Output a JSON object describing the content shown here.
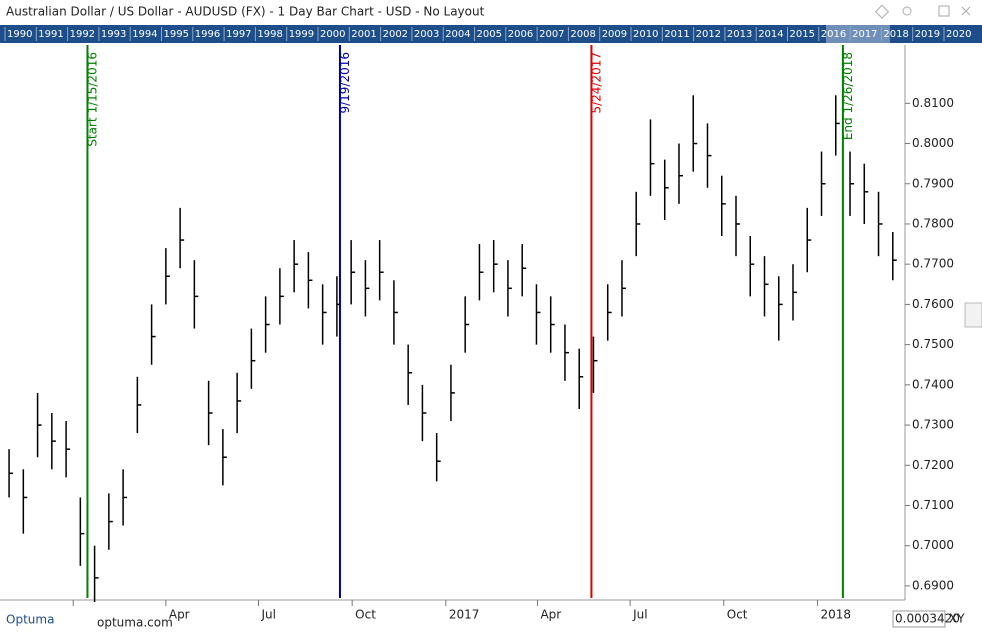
{
  "header": {
    "title": "Australian Dollar / US Dollar - AUDUSD (FX) - 1 Day Bar Chart - USD - No Layout"
  },
  "year_strip": [
    "1990",
    "1991",
    "1992",
    "1993",
    "1994",
    "1995",
    "1996",
    "1997",
    "1998",
    "1999",
    "2000",
    "2001",
    "2002",
    "2003",
    "2004",
    "2005",
    "2006",
    "2007",
    "2008",
    "2009",
    "2010",
    "2011",
    "2012",
    "2013",
    "2014",
    "2015",
    "2016",
    "2017",
    "2018",
    "2019",
    "2020"
  ],
  "chart_data": {
    "type": "ohlc",
    "color": "#000000",
    "x": [
      "2015-10-30",
      "2015-11-13",
      "2015-11-27",
      "2015-12-11",
      "2015-12-25",
      "2016-01-08",
      "2016-01-22",
      "2016-02-05",
      "2016-02-19",
      "2016-03-04",
      "2016-03-18",
      "2016-04-01",
      "2016-04-15",
      "2016-04-29",
      "2016-05-13",
      "2016-05-27",
      "2016-06-10",
      "2016-06-24",
      "2016-07-08",
      "2016-07-22",
      "2016-08-05",
      "2016-08-19",
      "2016-09-02",
      "2016-09-16",
      "2016-09-30",
      "2016-10-14",
      "2016-10-28",
      "2016-11-11",
      "2016-11-25",
      "2016-12-09",
      "2016-12-23",
      "2017-01-06",
      "2017-01-20",
      "2017-02-03",
      "2017-02-17",
      "2017-03-03",
      "2017-03-17",
      "2017-03-31",
      "2017-04-14",
      "2017-04-28",
      "2017-05-12",
      "2017-05-26",
      "2017-06-09",
      "2017-06-23",
      "2017-07-07",
      "2017-07-21",
      "2017-08-04",
      "2017-08-18",
      "2017-09-01",
      "2017-09-15",
      "2017-09-29",
      "2017-10-13",
      "2017-10-27",
      "2017-11-10",
      "2017-11-24",
      "2017-12-08",
      "2017-12-22",
      "2018-01-05",
      "2018-01-19",
      "2018-02-02",
      "2018-02-16",
      "2018-03-02",
      "2018-03-16"
    ],
    "high": [
      0.724,
      0.719,
      0.738,
      0.733,
      0.731,
      0.712,
      0.7,
      0.713,
      0.719,
      0.742,
      0.76,
      0.774,
      0.784,
      0.771,
      0.741,
      0.729,
      0.743,
      0.754,
      0.762,
      0.769,
      0.776,
      0.773,
      0.765,
      0.767,
      0.776,
      0.771,
      0.776,
      0.766,
      0.75,
      0.74,
      0.728,
      0.745,
      0.762,
      0.775,
      0.776,
      0.771,
      0.775,
      0.765,
      0.762,
      0.755,
      0.749,
      0.752,
      0.765,
      0.771,
      0.788,
      0.806,
      0.796,
      0.8,
      0.812,
      0.805,
      0.792,
      0.787,
      0.777,
      0.772,
      0.767,
      0.77,
      0.784,
      0.798,
      0.812,
      0.798,
      0.795,
      0.788,
      0.778
    ],
    "low": [
      0.712,
      0.703,
      0.722,
      0.719,
      0.717,
      0.695,
      0.686,
      0.699,
      0.705,
      0.728,
      0.745,
      0.76,
      0.769,
      0.754,
      0.725,
      0.715,
      0.728,
      0.739,
      0.748,
      0.755,
      0.763,
      0.759,
      0.75,
      0.752,
      0.76,
      0.757,
      0.761,
      0.75,
      0.735,
      0.726,
      0.716,
      0.731,
      0.748,
      0.761,
      0.763,
      0.757,
      0.762,
      0.75,
      0.748,
      0.741,
      0.734,
      0.738,
      0.751,
      0.757,
      0.772,
      0.787,
      0.781,
      0.785,
      0.793,
      0.789,
      0.777,
      0.772,
      0.762,
      0.757,
      0.751,
      0.756,
      0.768,
      0.782,
      0.797,
      0.782,
      0.78,
      0.772,
      0.766
    ],
    "close": [
      0.718,
      0.712,
      0.73,
      0.726,
      0.724,
      0.703,
      0.692,
      0.706,
      0.712,
      0.735,
      0.752,
      0.767,
      0.776,
      0.762,
      0.733,
      0.722,
      0.736,
      0.746,
      0.755,
      0.762,
      0.77,
      0.766,
      0.758,
      0.76,
      0.768,
      0.764,
      0.768,
      0.758,
      0.743,
      0.733,
      0.721,
      0.738,
      0.755,
      0.768,
      0.77,
      0.764,
      0.769,
      0.758,
      0.755,
      0.748,
      0.742,
      0.746,
      0.758,
      0.764,
      0.78,
      0.795,
      0.789,
      0.792,
      0.8,
      0.797,
      0.785,
      0.78,
      0.77,
      0.765,
      0.76,
      0.763,
      0.776,
      0.79,
      0.805,
      0.79,
      0.788,
      0.78,
      0.771
    ],
    "xlim": [
      "2015-10-26",
      "2018-03-28"
    ],
    "xticks": [
      {
        "value": "2016-01-01",
        "label": ""
      },
      {
        "value": "2016-04-01",
        "label": "Apr"
      },
      {
        "value": "2016-07-01",
        "label": "Jul"
      },
      {
        "value": "2016-10-01",
        "label": "Oct"
      },
      {
        "value": "2017-01-01",
        "label": "2017"
      },
      {
        "value": "2017-04-01",
        "label": "Apr"
      },
      {
        "value": "2017-07-01",
        "label": "Jul"
      },
      {
        "value": "2017-10-01",
        "label": "Oct"
      },
      {
        "value": "2018-01-01",
        "label": "2018"
      }
    ],
    "ylim": [
      0.6865,
      0.8245
    ],
    "yticks": [
      {
        "value": 0.69,
        "label": "0.6900"
      },
      {
        "value": 0.7,
        "label": "0.7000"
      },
      {
        "value": 0.71,
        "label": "0.7100"
      },
      {
        "value": 0.72,
        "label": "0.7200"
      },
      {
        "value": 0.73,
        "label": "0.7300"
      },
      {
        "value": 0.74,
        "label": "0.7400"
      },
      {
        "value": 0.75,
        "label": "0.7500"
      },
      {
        "value": 0.76,
        "label": "0.7600"
      },
      {
        "value": 0.77,
        "label": "0.7700"
      },
      {
        "value": 0.78,
        "label": "0.7800"
      },
      {
        "value": 0.79,
        "label": "0.7900"
      },
      {
        "value": 0.8,
        "label": "0.8000"
      },
      {
        "value": 0.81,
        "label": "0.8100"
      }
    ],
    "markers": [
      {
        "date": "2016-01-15",
        "label": "Start 1/15/2016",
        "color": "#008000"
      },
      {
        "date": "2016-09-19",
        "label": "9/19/2016",
        "color": "#0000a0"
      },
      {
        "date": "2017-05-24",
        "label": "5/24/2017",
        "color": "#e00000"
      },
      {
        "date": "2018-01-26",
        "label": "End 1/26/2018",
        "color": "#008000"
      }
    ]
  },
  "footer": {
    "logo": "Optuma",
    "site": "optuma.com",
    "scale": "0.0003420",
    "mode": "XY"
  }
}
